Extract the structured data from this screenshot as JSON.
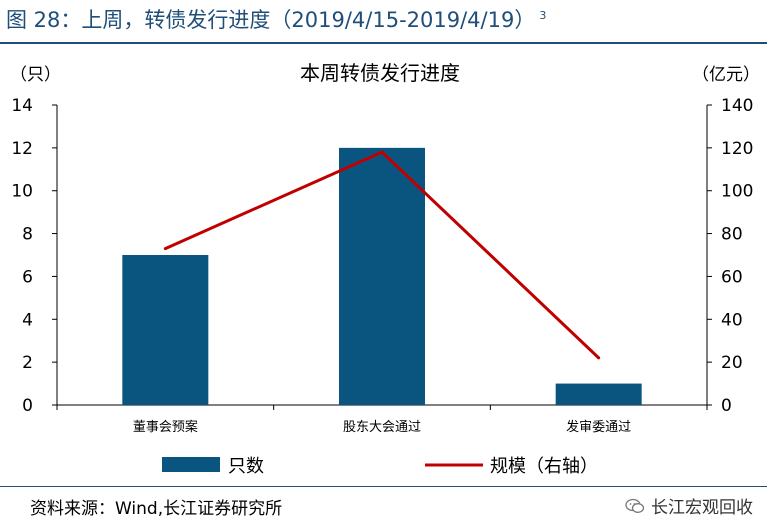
{
  "figure": {
    "title": "图 28：上周，转债发行进度（2019/4/15-2019/4/19）",
    "footnote_mark": "3",
    "source": "资料来源：Wind,长江证券研究所",
    "watermark": "长江宏观回收"
  },
  "colors": {
    "bar": "#0a5580",
    "line": "#c00000",
    "title": "#1f4e79"
  },
  "chart_data": {
    "type": "bar",
    "title": "本周转债发行进度",
    "categories": [
      "董事会预案",
      "股东大会通过",
      "发审委通过"
    ],
    "y_left_label": "（只）",
    "y_right_label": "（亿元）",
    "ylim_left": [
      0,
      14
    ],
    "ylim_right": [
      0,
      140
    ],
    "yticks_left": [
      "0",
      "2",
      "4",
      "6",
      "8",
      "10",
      "12",
      "14"
    ],
    "yticks_right": [
      "0",
      "20",
      "40",
      "60",
      "80",
      "100",
      "120",
      "140"
    ],
    "series": [
      {
        "name": "只数",
        "kind": "bar",
        "axis": "left",
        "values": [
          7,
          12,
          1
        ]
      },
      {
        "name": "规模（右轴）",
        "kind": "line",
        "axis": "right",
        "values": [
          73,
          118,
          22
        ]
      }
    ],
    "grid": false,
    "legend_position": "bottom"
  }
}
